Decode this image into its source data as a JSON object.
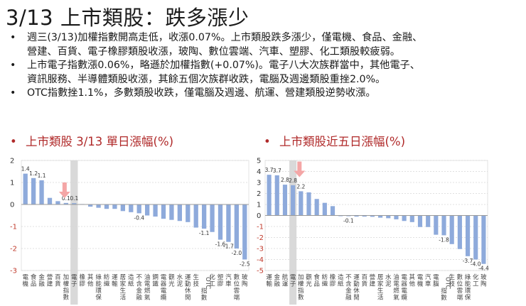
{
  "title": "3/13 上市類股：跌多漲少",
  "bullets": [
    {
      "lines": [
        "週三(3/13)加權指數開高走低，收漲0.07%。上市類股跌多漲少，僅電機、食品、金融、",
        "營建、百貨、電子橡膠類股收漲，玻陶、數位雲端、汽車、塑膠、化工類股較疲弱。"
      ]
    },
    {
      "lines": [
        "上市電子指數漲0.06%，略遜於加權指數(+0.07%)。電子八大次族群當中，其他電子、",
        "資訊服務、半導體類股收漲，其餘五個次族群收跌，電腦及週邊類股重挫2.0%。"
      ]
    },
    {
      "lines": [
        "OTC指數挫1.1%，多數類股收跌，僅電腦及週邊、航運、營建類股逆勢收漲。"
      ]
    }
  ],
  "bullet_glyph": "•",
  "colors": {
    "bar": "#8eaadb",
    "highlight": "#cfcfcf",
    "arrow": "#f4a6a6",
    "title_red": "#b02a2a",
    "neg_tick": "#c0392b"
  },
  "chart_data": [
    {
      "type": "bar",
      "title": "上市類股 3/13 單日漲幅(%)",
      "xlabel": "",
      "ylabel": "",
      "ylim": [
        -3,
        2
      ],
      "yticks": [
        2,
        1,
        0,
        -1,
        -2,
        -3
      ],
      "grid": true,
      "highlight_category": "電子",
      "categories": [
        "電機",
        "食品",
        "金融",
        "營建",
        "百貨",
        "加權指數",
        "電子",
        "橡膠",
        "其他",
        "綠能環保",
        "紡織",
        "運輸",
        "居家生活",
        "造紙",
        "不含金融",
        "油電燃氣",
        "鋼鐵",
        "電器電纜",
        "觀光",
        "水泥",
        "運動休閒",
        "生技",
        "OTC指數",
        "化工",
        "塑膠",
        "汽車",
        "數位雲端",
        "玻陶"
      ],
      "values": [
        1.4,
        1.2,
        1.1,
        0.3,
        0.15,
        0.07,
        0.06,
        0.02,
        -0.1,
        -0.15,
        -0.2,
        -0.2,
        -0.3,
        -0.35,
        -0.4,
        -0.5,
        -0.55,
        -0.65,
        -0.7,
        -0.75,
        -0.8,
        -1.05,
        -1.1,
        -1.25,
        -1.6,
        -1.7,
        -2.0,
        -2.5
      ],
      "data_labels": {
        "0": "1.4",
        "1": "1.2",
        "2": "1.1",
        "5": "0.1",
        "6": "0.1",
        "14": "-0.4",
        "22": "-1.1",
        "24": "-1.6",
        "25": "-1.7",
        "26": "-2.0",
        "27": "-2.5"
      }
    },
    {
      "type": "bar",
      "title": "上市類股近五日漲幅(%)",
      "xlabel": "",
      "ylabel": "",
      "ylim": [
        -5,
        5
      ],
      "yticks": [
        5,
        4,
        3,
        2,
        1,
        0,
        -1,
        -2,
        -3,
        -4,
        -5
      ],
      "grid": true,
      "highlight_category": "電子",
      "categories": [
        "運輸",
        "金融",
        "航運",
        "電子",
        "加權指數",
        "觀光",
        "食品",
        "紡織",
        "橡膠",
        "造紙",
        "不含金融",
        "運動休閒",
        "百貨",
        "營建",
        "居家生活",
        "水泥",
        "油電燃氣",
        "電器電纜",
        "其他",
        "電機",
        "汽車",
        "電腦",
        "OTC指數",
        "生技",
        "數位雲端",
        "綠能環保",
        "化工",
        "玻陶"
      ],
      "values": [
        3.7,
        3.65,
        2.8,
        2.75,
        2.2,
        2.1,
        1.5,
        1.15,
        0.85,
        0.0,
        -0.05,
        -0.1,
        -0.1,
        -0.12,
        -0.2,
        -0.25,
        -0.35,
        -0.5,
        -0.6,
        -1.05,
        -1.05,
        -1.75,
        -1.8,
        -2.6,
        -3.05,
        -3.7,
        -4.0,
        -4.4
      ],
      "data_labels": {
        "0": "3.7",
        "1": "3.7",
        "2": "2.8",
        "3": "2.8",
        "4": "2.2",
        "10": "-0.1",
        "22": "-1.8",
        "25": "-3.7",
        "26": "-4.0",
        "27": "-4.4"
      }
    }
  ]
}
